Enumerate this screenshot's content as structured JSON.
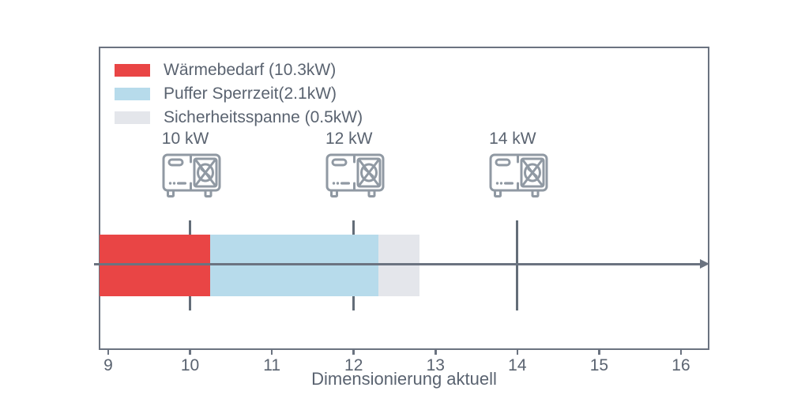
{
  "chart_data": {
    "type": "stacked_barh",
    "title": "",
    "xlabel": "Dimensionierung aktuell",
    "x_ticks": [
      9,
      10,
      11,
      12,
      13,
      14,
      15,
      16
    ],
    "xlim": [
      8.89,
      16.4
    ],
    "grid": false,
    "legend_position": "upper-left-inside",
    "legend": [
      {
        "label": "Wärmebedarf (10.3kW)",
        "value_kw": 10.3,
        "color": "#e94545"
      },
      {
        "label": "Puffer Sperrzeit(2.1kW)",
        "value_kw": 2.1,
        "color": "#b7dbeb"
      },
      {
        "label": "Sicherheitsspanne (0.5kW)",
        "value_kw": 0.5,
        "color": "#e4e6eb"
      }
    ],
    "bar_segments": [
      {
        "name": "Wärmebedarf",
        "x_start": 8.89,
        "x_end": 10.25,
        "color": "#e94545"
      },
      {
        "name": "Puffer Sperrzeit",
        "x_start": 10.25,
        "x_end": 12.3,
        "color": "#b7dbeb"
      },
      {
        "name": "Sicherheitsspanne",
        "x_start": 12.3,
        "x_end": 12.8,
        "color": "#e4e6eb"
      }
    ],
    "heat_pumps": [
      {
        "label": "10 kW",
        "x_value": 10
      },
      {
        "label": "12 kW",
        "x_value": 12
      },
      {
        "label": "14 kW",
        "x_value": 14
      }
    ],
    "arrow": {
      "x_start": 8.83,
      "x_end": 16.35
    },
    "colors": {
      "axis": "#6b7380",
      "text": "#5a6370",
      "marker_line": "#636d78",
      "icon_stroke": "#9099a3"
    }
  }
}
